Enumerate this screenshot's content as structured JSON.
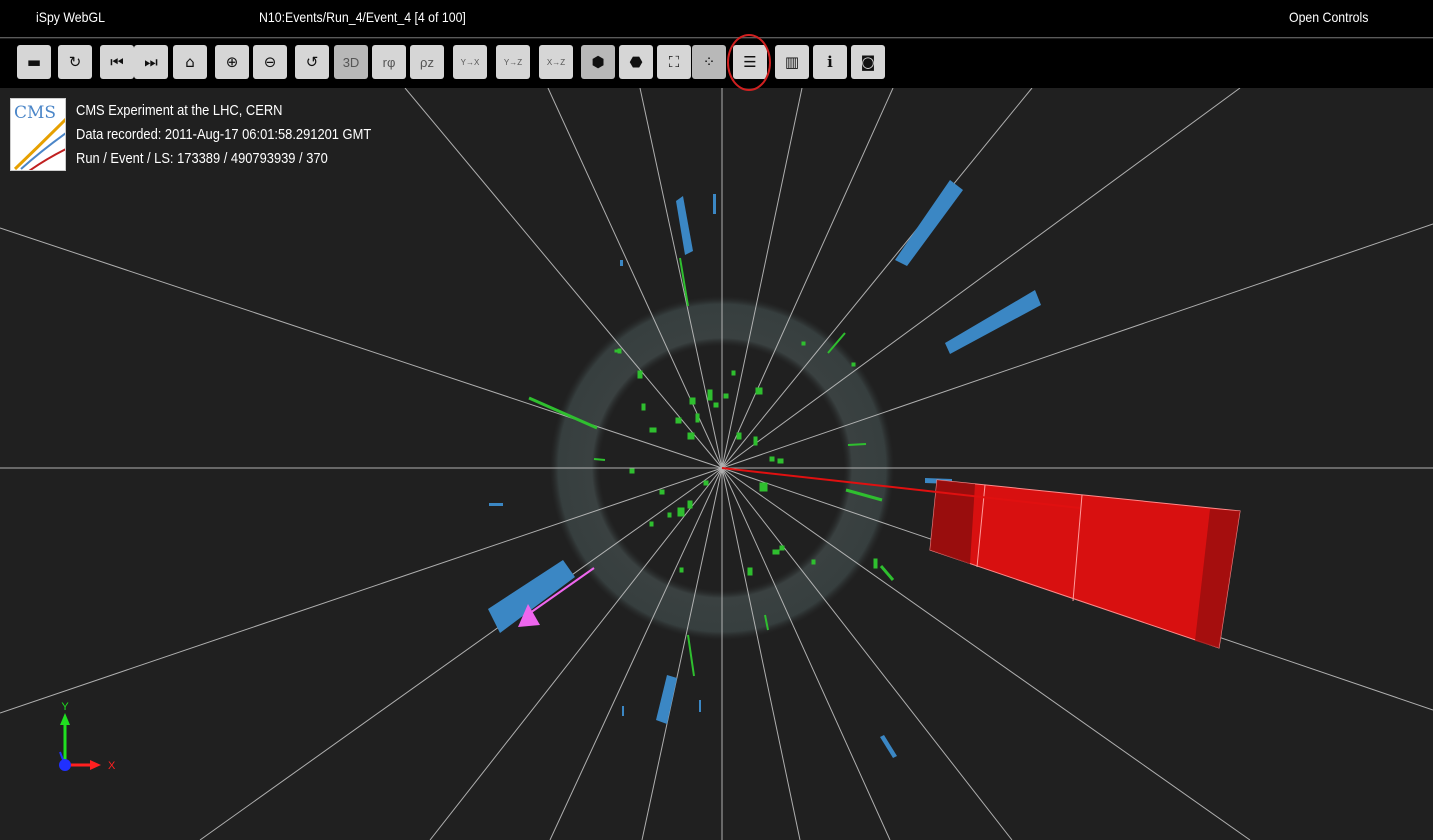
{
  "app": {
    "title": "iSpy WebGL",
    "event_path": "N10:Events/Run_4/Event_4 [4 of 100]",
    "open_controls": "Open Controls"
  },
  "toolbar": [
    {
      "name": "open-file-button",
      "glyph": "▬"
    },
    {
      "name": "reload-button",
      "glyph": "↻"
    },
    {
      "name": "previous-event-button",
      "glyph": "⏮"
    },
    {
      "name": "next-event-button",
      "glyph": "⏭"
    },
    {
      "name": "home-view-button",
      "glyph": "⌂"
    },
    {
      "name": "zoom-in-button",
      "glyph": "⊕"
    },
    {
      "name": "zoom-out-button",
      "glyph": "⊖"
    },
    {
      "name": "reset-view-button",
      "glyph": "↺"
    },
    {
      "name": "view-3d-button",
      "glyph": "3D"
    },
    {
      "name": "view-rphi-button",
      "glyph": "rφ"
    },
    {
      "name": "view-rhoz-button",
      "glyph": "ρz"
    },
    {
      "name": "view-xy-button",
      "glyph": "Y→X"
    },
    {
      "name": "view-yz-button",
      "glyph": "Y→Z"
    },
    {
      "name": "view-xz-button",
      "glyph": "X→Z"
    },
    {
      "name": "perspective-button",
      "glyph": "⬢"
    },
    {
      "name": "orthographic-button",
      "glyph": "⬣"
    },
    {
      "name": "fullscreen-button",
      "glyph": "⛶"
    },
    {
      "name": "exit-fullscreen-button",
      "glyph": "⁘"
    },
    {
      "name": "settings-button",
      "glyph": "☰"
    },
    {
      "name": "charts-button",
      "glyph": "▥"
    },
    {
      "name": "info-button",
      "glyph": "i"
    },
    {
      "name": "screenshot-button",
      "glyph": "◙"
    }
  ],
  "event_info": {
    "logo_text": "CMS",
    "line1": "CMS Experiment at the LHC, CERN",
    "line2": "Data recorded: 2011-Aug-17 06:01:58.291201 GMT",
    "line3": "Run / Event / LS: 173389 / 490793939 / 370"
  },
  "axes": {
    "x_label": "X",
    "y_label": "Y",
    "x_color": "#ff2020",
    "y_color": "#20e020",
    "z_color": "#2030ff"
  },
  "colors": {
    "muon_chamber": "#3b87c4",
    "calo_tower": "#c01010",
    "tracker_hit": "#30c030",
    "met_arrow": "#ee66ee"
  }
}
